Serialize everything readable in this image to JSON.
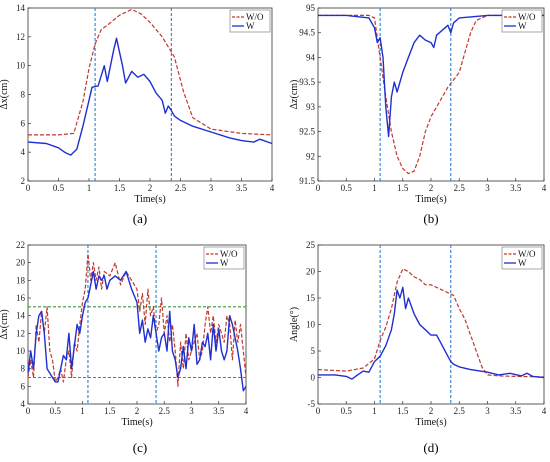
{
  "chart_data": [
    {
      "type": "line",
      "panel_label": "(a)",
      "xlabel": "Time(s)",
      "ylabel": "Δx(cm)",
      "xlim": [
        0,
        4
      ],
      "ylim": [
        2,
        14
      ],
      "xticks": [
        "0",
        "0.5",
        "1",
        "1.5",
        "2",
        "2.5",
        "3",
        "3.5",
        "4"
      ],
      "yticks": [
        "2",
        "4",
        "6",
        "8",
        "10",
        "12",
        "14"
      ],
      "vlines": [
        1.1,
        2.35
      ],
      "hlines": [],
      "legend": [
        "W/O",
        "W"
      ],
      "legend_position": "top-right",
      "series": [
        {
          "name": "W/O",
          "color": "#c0392b",
          "style": "dashed",
          "x": [
            0,
            0.5,
            0.75,
            0.9,
            1.0,
            1.1,
            1.2,
            1.3,
            1.5,
            1.7,
            1.85,
            2.0,
            2.2,
            2.4,
            2.55,
            2.7,
            3.0,
            3.5,
            4.0
          ],
          "y": [
            5.2,
            5.2,
            5.3,
            7.5,
            9.8,
            11.5,
            12.5,
            12.8,
            13.5,
            13.9,
            13.6,
            13.0,
            12.0,
            10.6,
            8.2,
            6.4,
            5.6,
            5.3,
            5.2
          ]
        },
        {
          "name": "W",
          "color": "#1f2fd0",
          "style": "solid",
          "x": [
            0,
            0.3,
            0.5,
            0.6,
            0.7,
            0.8,
            0.9,
            1.0,
            1.05,
            1.15,
            1.25,
            1.3,
            1.4,
            1.45,
            1.55,
            1.6,
            1.7,
            1.8,
            1.9,
            2.0,
            2.1,
            2.2,
            2.25,
            2.3,
            2.35,
            2.4,
            2.5,
            2.7,
            3.0,
            3.3,
            3.5,
            3.7,
            3.8,
            4.0
          ],
          "y": [
            4.7,
            4.6,
            4.3,
            4.0,
            3.8,
            4.2,
            5.8,
            7.6,
            8.5,
            8.6,
            10.0,
            8.9,
            11.0,
            11.9,
            10.0,
            8.8,
            9.6,
            9.2,
            9.4,
            8.9,
            8.1,
            7.6,
            6.7,
            7.2,
            6.9,
            6.5,
            6.2,
            5.8,
            5.4,
            5.0,
            4.8,
            4.7,
            4.9,
            4.6
          ]
        }
      ]
    },
    {
      "type": "line",
      "panel_label": "(b)",
      "xlabel": "Time(s)",
      "ylabel": "Δz(cm)",
      "xlim": [
        0,
        4
      ],
      "ylim": [
        91.5,
        95
      ],
      "xticks": [
        "0",
        "0.5",
        "1",
        "1.5",
        "2",
        "2.5",
        "3",
        "3.5",
        "4"
      ],
      "yticks": [
        "91.5",
        "92",
        "92.5",
        "93",
        "93.5",
        "94",
        "94.5",
        "95"
      ],
      "vlines": [
        1.1,
        2.35
      ],
      "hlines": [],
      "legend": [
        "W/O",
        "W"
      ],
      "legend_position": "top-right",
      "series": [
        {
          "name": "W/O",
          "color": "#c0392b",
          "style": "dashed",
          "x": [
            0,
            0.5,
            0.9,
            1.0,
            1.05,
            1.1,
            1.2,
            1.3,
            1.4,
            1.5,
            1.6,
            1.7,
            1.8,
            1.9,
            2.0,
            2.1,
            2.2,
            2.3,
            2.4,
            2.5,
            2.6,
            2.7,
            2.8,
            3.0,
            3.5,
            4.0
          ],
          "y": [
            94.85,
            94.85,
            94.85,
            94.8,
            94.4,
            94.0,
            93.2,
            92.5,
            92.0,
            91.75,
            91.65,
            91.7,
            92.0,
            92.5,
            92.8,
            93.0,
            93.2,
            93.4,
            93.55,
            93.7,
            94.1,
            94.5,
            94.75,
            94.85,
            94.85,
            94.85
          ]
        },
        {
          "name": "W",
          "color": "#1f2fd0",
          "style": "solid",
          "x": [
            0,
            0.5,
            0.9,
            1.0,
            1.05,
            1.1,
            1.15,
            1.2,
            1.25,
            1.3,
            1.35,
            1.4,
            1.5,
            1.6,
            1.7,
            1.8,
            1.9,
            2.0,
            2.05,
            2.1,
            2.2,
            2.3,
            2.35,
            2.4,
            2.5,
            3.0,
            3.5,
            4.0
          ],
          "y": [
            94.85,
            94.85,
            94.8,
            94.6,
            94.3,
            94.4,
            94.0,
            93.0,
            92.4,
            93.2,
            93.5,
            93.3,
            93.7,
            94.0,
            94.3,
            94.45,
            94.35,
            94.3,
            94.2,
            94.45,
            94.55,
            94.65,
            94.5,
            94.7,
            94.8,
            94.85,
            94.85,
            94.85
          ]
        }
      ]
    },
    {
      "type": "line",
      "panel_label": "(c)",
      "xlabel": "Time(s)",
      "ylabel": "Δx(cm)",
      "xlim": [
        0,
        4
      ],
      "ylim": [
        4,
        22
      ],
      "xticks": [
        "0",
        "0.5",
        "1",
        "1.5",
        "2",
        "2.5",
        "3",
        "3.5",
        "4"
      ],
      "yticks": [
        "4",
        "6",
        "8",
        "10",
        "12",
        "14",
        "16",
        "18",
        "20",
        "22"
      ],
      "vlines": [
        1.1,
        2.35
      ],
      "hlines": [
        15,
        7
      ],
      "legend": [
        "W/O",
        "W"
      ],
      "legend_position": "top-right",
      "series": [
        {
          "name": "W/O",
          "color": "#c0392b",
          "style": "dashed",
          "x": [
            0,
            0.05,
            0.1,
            0.15,
            0.2,
            0.25,
            0.3,
            0.35,
            0.4,
            0.45,
            0.5,
            0.55,
            0.6,
            0.65,
            0.7,
            0.75,
            0.8,
            0.85,
            0.9,
            0.95,
            1.0,
            1.05,
            1.1,
            1.15,
            1.2,
            1.25,
            1.3,
            1.35,
            1.4,
            1.5,
            1.6,
            1.7,
            1.8,
            1.9,
            2.0,
            2.05,
            2.1,
            2.15,
            2.2,
            2.25,
            2.3,
            2.35,
            2.4,
            2.45,
            2.5,
            2.55,
            2.6,
            2.65,
            2.7,
            2.75,
            2.8,
            2.85,
            2.9,
            2.95,
            3.0,
            3.05,
            3.1,
            3.15,
            3.2,
            3.25,
            3.3,
            3.35,
            3.4,
            3.45,
            3.5,
            3.55,
            3.6,
            3.65,
            3.7,
            3.75,
            3.8,
            3.85,
            3.9,
            3.95,
            4.0
          ],
          "y": [
            7,
            9,
            7,
            13,
            11,
            14.5,
            12,
            15,
            10,
            9,
            6.5,
            7,
            8,
            6.5,
            9,
            10,
            7,
            11,
            10,
            13,
            15.5,
            17,
            21,
            18,
            20,
            18,
            19.5,
            17,
            19,
            18.5,
            20,
            17.5,
            19,
            18,
            17,
            14.5,
            16.5,
            13,
            17,
            14,
            15,
            12,
            13,
            16,
            12,
            14,
            11,
            13,
            10,
            6,
            11,
            8,
            12,
            9,
            10,
            11,
            12,
            9,
            10,
            13,
            15,
            12,
            14,
            11,
            13,
            12,
            11,
            14,
            13,
            9,
            13.5,
            11,
            13,
            10,
            7
          ]
        },
        {
          "name": "W",
          "color": "#1f2fd0",
          "style": "solid",
          "x": [
            0,
            0.05,
            0.1,
            0.15,
            0.2,
            0.25,
            0.3,
            0.35,
            0.4,
            0.45,
            0.5,
            0.55,
            0.6,
            0.65,
            0.7,
            0.75,
            0.8,
            0.85,
            0.9,
            0.95,
            1.0,
            1.05,
            1.1,
            1.15,
            1.2,
            1.25,
            1.3,
            1.35,
            1.4,
            1.45,
            1.5,
            1.6,
            1.7,
            1.8,
            1.9,
            2.0,
            2.05,
            2.1,
            2.15,
            2.2,
            2.25,
            2.3,
            2.35,
            2.4,
            2.45,
            2.5,
            2.55,
            2.6,
            2.65,
            2.7,
            2.75,
            2.8,
            2.85,
            2.9,
            2.95,
            3.0,
            3.05,
            3.1,
            3.15,
            3.2,
            3.25,
            3.3,
            3.35,
            3.4,
            3.45,
            3.5,
            3.55,
            3.6,
            3.65,
            3.7,
            3.75,
            3.8,
            3.85,
            3.9,
            3.95,
            4.0
          ],
          "y": [
            7.5,
            10,
            8,
            12,
            14,
            14.5,
            12,
            8,
            7.5,
            7,
            6.5,
            6.5,
            8,
            9.5,
            9,
            12,
            8,
            10.5,
            13,
            12,
            14,
            15.5,
            16,
            17.5,
            19,
            17,
            18.5,
            18,
            18.5,
            17,
            18,
            18.5,
            18,
            19,
            17,
            15.5,
            12,
            13.5,
            11,
            12.5,
            11.5,
            14,
            12,
            10,
            11.5,
            12,
            10,
            14.5,
            10,
            9,
            7,
            8,
            10.5,
            8,
            11.5,
            10,
            13,
            8.5,
            9,
            11,
            10.5,
            12,
            9,
            13,
            10,
            12.5,
            10,
            9,
            10,
            14,
            13,
            11.5,
            10,
            8,
            5.5,
            6
          ]
        }
      ]
    },
    {
      "type": "line",
      "panel_label": "(d)",
      "xlabel": "Time(s)",
      "ylabel": "Angle(°)",
      "xlim": [
        0,
        4
      ],
      "ylim": [
        -5,
        25
      ],
      "xticks": [
        "0",
        "0.5",
        "1",
        "1.5",
        "2",
        "2.5",
        "3",
        "3.5",
        "4"
      ],
      "yticks": [
        "-5",
        "0",
        "5",
        "10",
        "15",
        "20",
        "25"
      ],
      "vlines": [
        1.1,
        2.35
      ],
      "hlines": [],
      "legend": [
        "W/O",
        "W"
      ],
      "legend_position": "top-right",
      "series": [
        {
          "name": "W/O",
          "color": "#c0392b",
          "style": "dashed",
          "x": [
            0,
            0.5,
            0.8,
            1.0,
            1.1,
            1.2,
            1.3,
            1.4,
            1.5,
            1.6,
            1.7,
            1.8,
            1.9,
            2.0,
            2.1,
            2.2,
            2.3,
            2.4,
            2.5,
            2.6,
            2.7,
            2.8,
            2.9,
            3.0,
            3.2,
            3.5,
            4.0
          ],
          "y": [
            1.5,
            1.2,
            1.8,
            3.5,
            7,
            9.5,
            13,
            18,
            20.5,
            20,
            19,
            18.5,
            17.5,
            17.5,
            17,
            16.5,
            16,
            15.5,
            13,
            11,
            8,
            5,
            2,
            0.5,
            0.3,
            0.2,
            0.1
          ]
        },
        {
          "name": "W",
          "color": "#1f2fd0",
          "style": "solid",
          "x": [
            0,
            0.3,
            0.5,
            0.6,
            0.7,
            0.8,
            0.9,
            1.0,
            1.1,
            1.2,
            1.3,
            1.35,
            1.4,
            1.45,
            1.5,
            1.55,
            1.6,
            1.7,
            1.8,
            1.9,
            2.0,
            2.1,
            2.2,
            2.3,
            2.35,
            2.4,
            2.5,
            2.7,
            3.0,
            3.2,
            3.4,
            3.6,
            3.7,
            3.8,
            4.0
          ],
          "y": [
            0.5,
            0.5,
            0.2,
            -0.3,
            0.5,
            1.2,
            1,
            3,
            4,
            6,
            9,
            12,
            16.5,
            15,
            17,
            13,
            15,
            12,
            10,
            9,
            8,
            8,
            6,
            4,
            3,
            2.5,
            2,
            1.5,
            1,
            0.5,
            0.8,
            0.3,
            0.8,
            0.2,
            0
          ]
        }
      ]
    }
  ]
}
